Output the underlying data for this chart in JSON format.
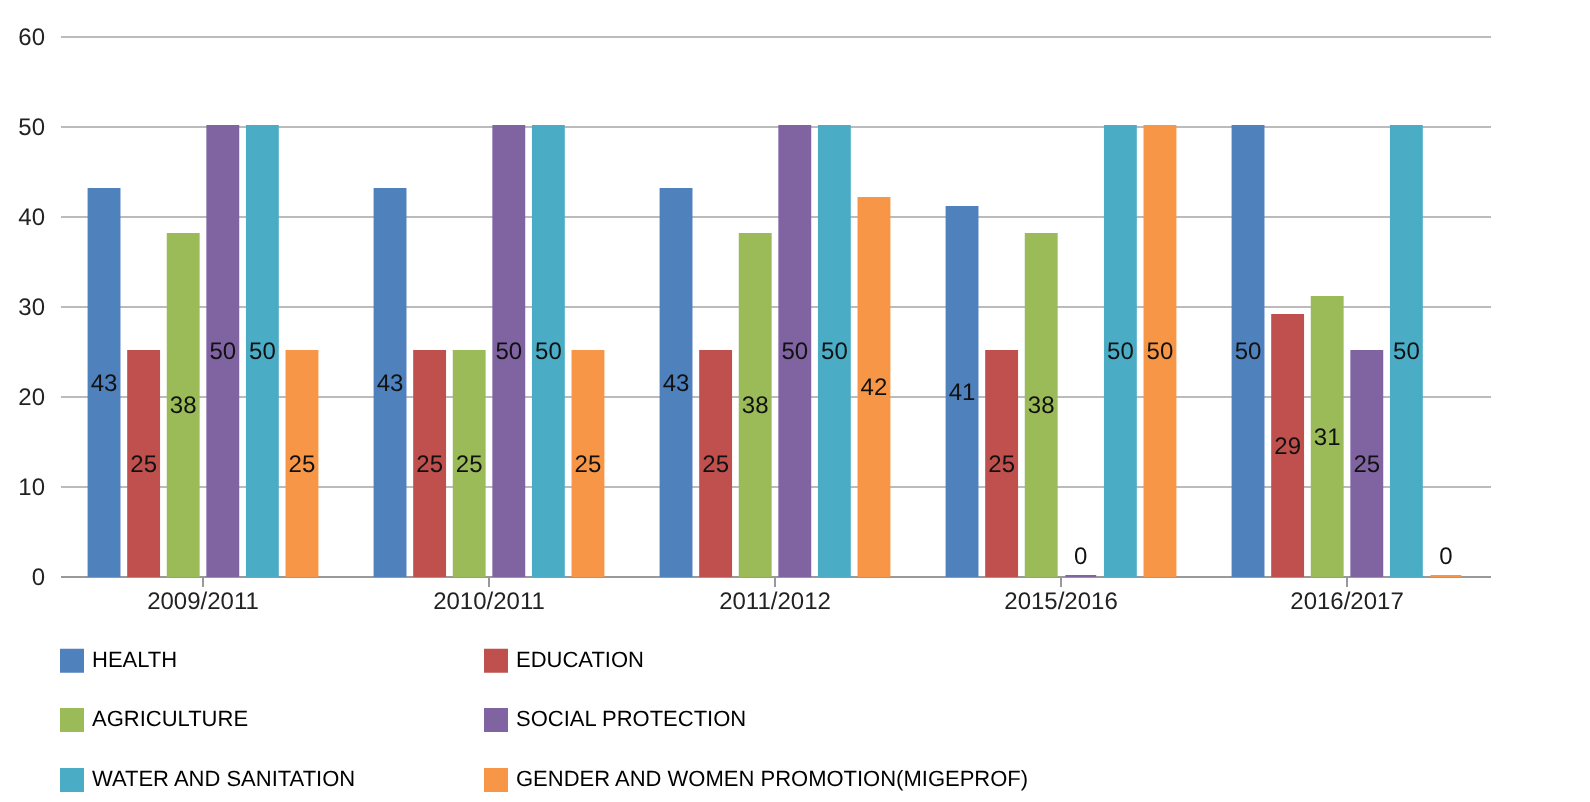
{
  "chart_data": {
    "type": "bar",
    "categories": [
      "2009/2011",
      "2010/2011",
      "2011/2012",
      "2015/2016",
      "2016/2017"
    ],
    "series": [
      {
        "name": "HEALTH",
        "color": "#4f81bd",
        "values": [
          43,
          43,
          43,
          41,
          50
        ]
      },
      {
        "name": "EDUCATION",
        "color": "#c0504d",
        "values": [
          25,
          25,
          25,
          25,
          29
        ]
      },
      {
        "name": "AGRICULTURE",
        "color": "#9bbb59",
        "values": [
          38,
          25,
          38,
          38,
          31
        ]
      },
      {
        "name": "SOCIAL PROTECTION",
        "color": "#8064a2",
        "values": [
          50,
          50,
          50,
          0,
          25
        ]
      },
      {
        "name": "WATER AND SANITATION",
        "color": "#4bacc6",
        "values": [
          50,
          50,
          50,
          50,
          50
        ]
      },
      {
        "name": "GENDER AND WOMEN PROMOTION(MIGEPROF)",
        "color": "#f79646",
        "values": [
          25,
          25,
          42,
          50,
          0
        ]
      }
    ],
    "ylim": [
      0,
      60
    ],
    "yticks": [
      0,
      10,
      20,
      30,
      40,
      50,
      60
    ],
    "grid": "y",
    "legend": "bottom",
    "data_labels": true
  }
}
